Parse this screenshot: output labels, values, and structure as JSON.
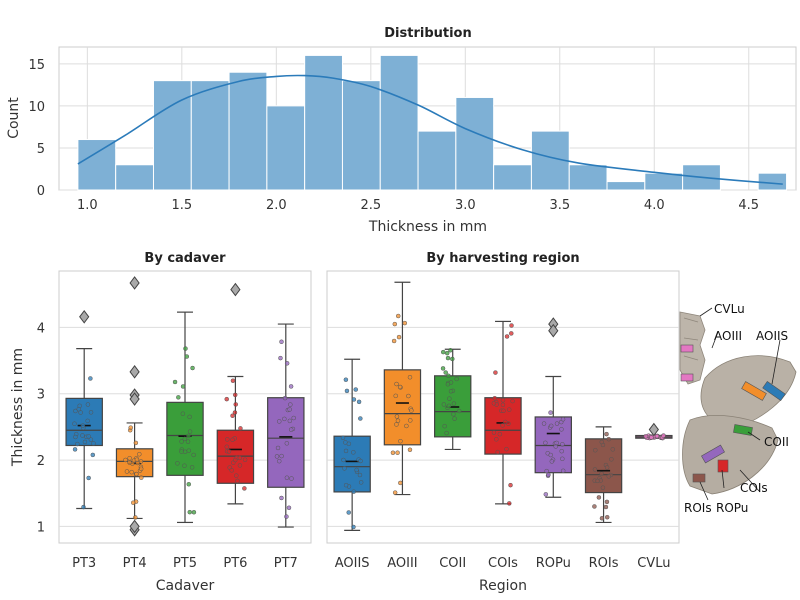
{
  "chart_data": [
    {
      "type": "bar",
      "subtype": "histogram_with_kde",
      "title": "Distribution",
      "xlabel": "Thickness in mm",
      "ylabel": "Count",
      "xlim": [
        0.85,
        4.75
      ],
      "ylim": [
        0,
        17
      ],
      "xticks": [
        "1.0",
        "1.5",
        "2.0",
        "2.5",
        "3.0",
        "3.5",
        "4.0",
        "4.5"
      ],
      "yticks": [
        "0",
        "5",
        "10",
        "15"
      ],
      "bin_edges": [
        0.95,
        1.15,
        1.35,
        1.55,
        1.75,
        1.95,
        2.15,
        2.35,
        2.55,
        2.75,
        2.95,
        3.15,
        3.35,
        3.55,
        3.75,
        3.95,
        4.15,
        4.35,
        4.55,
        4.7
      ],
      "counts": [
        6,
        3,
        13,
        13,
        14,
        10,
        16,
        13,
        16,
        7,
        11,
        3,
        7,
        3,
        1,
        2,
        3,
        0,
        2
      ],
      "kde_curve": {
        "x": [
          0.95,
          1.2,
          1.5,
          1.8,
          2.0,
          2.15,
          2.3,
          2.5,
          2.75,
          3.0,
          3.3,
          3.6,
          4.0,
          4.3,
          4.68
        ],
        "y": [
          3.1,
          6.5,
          10.7,
          12.9,
          13.5,
          13.6,
          13.3,
          12.3,
          10.1,
          7.3,
          4.8,
          3.2,
          2.1,
          1.4,
          0.7
        ]
      },
      "colors": {
        "bar": "#7eb0d5",
        "kde": "#2b7bba"
      }
    },
    {
      "type": "boxplot",
      "title": "By cadaver",
      "xlabel": "Cadaver",
      "ylabel": "Thickness in mm",
      "categories": [
        "PT3",
        "PT4",
        "PT5",
        "PT6",
        "PT7"
      ],
      "ylim": [
        0.75,
        4.85
      ],
      "yticks": [
        "1",
        "2",
        "3",
        "4"
      ],
      "colors": [
        "#2c7bb6",
        "#f28e2b",
        "#3a9e3a",
        "#d62728",
        "#9467bd"
      ],
      "boxes": [
        {
          "min": 1.27,
          "q1": 2.22,
          "median": 2.45,
          "mean": 2.52,
          "q3": 2.93,
          "max": 3.68,
          "outliers": [
            4.16
          ]
        },
        {
          "min": 1.12,
          "q1": 1.75,
          "median": 1.98,
          "mean": 1.95,
          "q3": 2.17,
          "max": 2.56,
          "outliers": [
            4.67,
            3.33,
            2.98,
            2.92,
            0.95,
            1.0
          ]
        },
        {
          "min": 1.06,
          "q1": 1.77,
          "median": 2.37,
          "mean": 2.36,
          "q3": 2.87,
          "max": 4.23,
          "outliers": []
        },
        {
          "min": 1.34,
          "q1": 1.65,
          "median": 2.06,
          "mean": 2.16,
          "q3": 2.45,
          "max": 3.26,
          "outliers": [
            4.57
          ]
        },
        {
          "min": 0.99,
          "q1": 1.59,
          "median": 2.33,
          "mean": 2.35,
          "q3": 2.94,
          "max": 4.05,
          "outliers": []
        }
      ]
    },
    {
      "type": "boxplot",
      "title": "By harvesting region",
      "xlabel": "Region",
      "ylabel": "",
      "categories": [
        "AOIIS",
        "AOIII",
        "COII",
        "COIs",
        "ROPu",
        "ROIs",
        "CVLu"
      ],
      "ylim": [
        0.75,
        4.85
      ],
      "colors": [
        "#2c7bb6",
        "#f28e2b",
        "#3a9e3a",
        "#d62728",
        "#9467bd",
        "#8c564b",
        "#e377c2"
      ],
      "boxes": [
        {
          "min": 0.94,
          "q1": 1.52,
          "median": 1.9,
          "mean": 1.98,
          "q3": 2.36,
          "max": 3.52,
          "outliers": []
        },
        {
          "min": 1.48,
          "q1": 2.23,
          "median": 2.7,
          "mean": 2.86,
          "q3": 3.36,
          "max": 4.68,
          "outliers": []
        },
        {
          "min": 2.16,
          "q1": 2.35,
          "median": 2.73,
          "mean": 2.8,
          "q3": 3.27,
          "max": 3.67,
          "outliers": []
        },
        {
          "min": 1.34,
          "q1": 2.09,
          "median": 2.45,
          "mean": 2.56,
          "q3": 2.94,
          "max": 4.09,
          "outliers": []
        },
        {
          "min": 1.44,
          "q1": 1.81,
          "median": 2.22,
          "mean": 2.4,
          "q3": 2.65,
          "max": 3.26,
          "outliers": [
            4.05,
            3.95
          ]
        },
        {
          "min": 1.06,
          "q1": 1.51,
          "median": 1.78,
          "mean": 1.84,
          "q3": 2.32,
          "max": 2.5,
          "outliers": []
        },
        {
          "min": 2.33,
          "q1": 2.33,
          "median": 2.35,
          "mean": 2.36,
          "q3": 2.37,
          "max": 2.37,
          "outliers": [
            2.46
          ]
        }
      ]
    }
  ],
  "annotation_labels": [
    "CVLu",
    "AOIII",
    "AOIIS",
    "COII",
    "COIs",
    "ROIs",
    "ROPu"
  ]
}
